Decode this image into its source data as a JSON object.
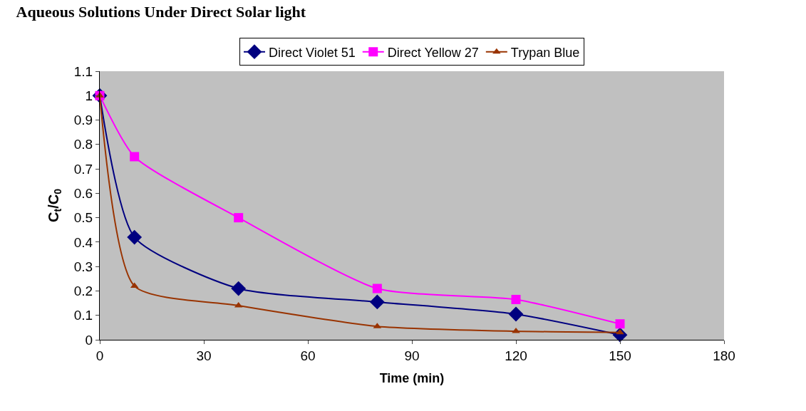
{
  "chart_data": {
    "type": "line",
    "title": "Aqueous Solutions Under Direct Solar light",
    "xlabel": "Time (min)",
    "ylabel": "C$_{t}$/C$_{0}$",
    "x": [
      0,
      10,
      40,
      80,
      120,
      150
    ],
    "series": [
      {
        "name": "Direct Violet 51",
        "color": "#000080",
        "marker": "diamond",
        "values": [
          1,
          0.42,
          0.21,
          0.155,
          0.105,
          0.02
        ]
      },
      {
        "name": "Direct Yellow 27",
        "color": "#ff00ff",
        "marker": "square",
        "values": [
          1,
          0.75,
          0.5,
          0.21,
          0.165,
          0.065
        ]
      },
      {
        "name": "Trypan Blue",
        "color": "#993300",
        "marker": "triangle",
        "values": [
          1,
          0.22,
          0.14,
          0.055,
          0.035,
          0.03
        ]
      }
    ],
    "xlim": [
      0,
      180
    ],
    "xticks": [
      0,
      30,
      60,
      90,
      120,
      150,
      180
    ],
    "ylim": [
      0,
      1.1
    ],
    "yticks": [
      0,
      0.1,
      0.2,
      0.3,
      0.4,
      0.5,
      0.6,
      0.7,
      0.8,
      0.9,
      1,
      1.1
    ],
    "grid": false,
    "legend": "top",
    "line_style": "solid"
  }
}
